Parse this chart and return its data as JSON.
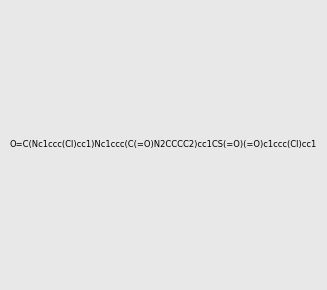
{
  "smiles": "O=C(Nc1ccc(Cl)cc1)Nc1ccc(C(=O)N2CCCC2)cc1CS(=O)(=O)c1ccc(Cl)cc1",
  "image_size": 300,
  "background_color": "#e8e8e8"
}
